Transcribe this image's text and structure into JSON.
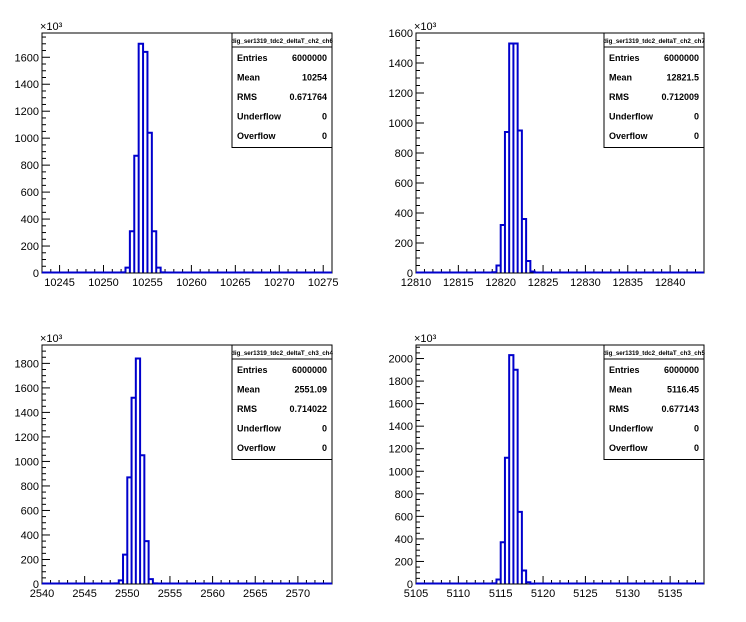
{
  "chart_data": [
    {
      "type": "bar",
      "title": "dig_ser1319_tdc2_deltaT_ch2_ch6",
      "exponent_label": "×10³",
      "xlim": [
        10243,
        10276
      ],
      "ylim": [
        0,
        1780
      ],
      "xticks": [
        10245,
        10250,
        10255,
        10260,
        10265,
        10270,
        10275
      ],
      "yticks": [
        0,
        200,
        400,
        600,
        800,
        1000,
        1200,
        1400,
        1600
      ],
      "bin_width": 0.5,
      "bins": [
        {
          "x": 10252.0,
          "y": 5
        },
        {
          "x": 10252.5,
          "y": 40
        },
        {
          "x": 10253.0,
          "y": 310
        },
        {
          "x": 10253.5,
          "y": 870
        },
        {
          "x": 10254.0,
          "y": 1700
        },
        {
          "x": 10254.5,
          "y": 1640
        },
        {
          "x": 10255.0,
          "y": 1040
        },
        {
          "x": 10255.5,
          "y": 310
        },
        {
          "x": 10256.0,
          "y": 40
        },
        {
          "x": 10256.5,
          "y": 5
        }
      ],
      "stats": [
        {
          "label": "Entries",
          "value": "6000000"
        },
        {
          "label": "Mean",
          "value": "10254"
        },
        {
          "label": "RMS",
          "value": "0.671764"
        },
        {
          "label": "Underflow",
          "value": "0"
        },
        {
          "label": "Overflow",
          "value": "0"
        }
      ]
    },
    {
      "type": "bar",
      "title": "dig_ser1319_tdc2_deltaT_ch2_ch7",
      "exponent_label": "×10³",
      "xlim": [
        12810,
        12844
      ],
      "ylim": [
        0,
        1600
      ],
      "xticks": [
        12810,
        12815,
        12820,
        12825,
        12830,
        12835,
        12840
      ],
      "yticks": [
        0,
        200,
        400,
        600,
        800,
        1000,
        1200,
        1400,
        1600
      ],
      "bin_width": 0.5,
      "bins": [
        {
          "x": 12819.0,
          "y": 5
        },
        {
          "x": 12819.5,
          "y": 50
        },
        {
          "x": 12820.0,
          "y": 320
        },
        {
          "x": 12820.5,
          "y": 940
        },
        {
          "x": 12821.0,
          "y": 1530
        },
        {
          "x": 12821.5,
          "y": 1530
        },
        {
          "x": 12822.0,
          "y": 950
        },
        {
          "x": 12822.5,
          "y": 360
        },
        {
          "x": 12823.0,
          "y": 80
        },
        {
          "x": 12823.5,
          "y": 10
        }
      ],
      "stats": [
        {
          "label": "Entries",
          "value": "6000000"
        },
        {
          "label": "Mean",
          "value": "12821.5"
        },
        {
          "label": "RMS",
          "value": "0.712009"
        },
        {
          "label": "Underflow",
          "value": "0"
        },
        {
          "label": "Overflow",
          "value": "0"
        }
      ]
    },
    {
      "type": "bar",
      "title": "dig_ser1319_tdc2_deltaT_ch3_ch4",
      "exponent_label": "×10³",
      "xlim": [
        2540,
        2574
      ],
      "ylim": [
        0,
        1950
      ],
      "xticks": [
        2540,
        2545,
        2550,
        2555,
        2560,
        2565,
        2570
      ],
      "yticks": [
        0,
        200,
        400,
        600,
        800,
        1000,
        1200,
        1400,
        1600,
        1800
      ],
      "bin_width": 0.5,
      "bins": [
        {
          "x": 2548.5,
          "y": 5
        },
        {
          "x": 2549.0,
          "y": 30
        },
        {
          "x": 2549.5,
          "y": 240
        },
        {
          "x": 2550.0,
          "y": 870
        },
        {
          "x": 2550.5,
          "y": 1520
        },
        {
          "x": 2551.0,
          "y": 1840
        },
        {
          "x": 2551.5,
          "y": 1050
        },
        {
          "x": 2552.0,
          "y": 350
        },
        {
          "x": 2552.5,
          "y": 40
        },
        {
          "x": 2553.0,
          "y": 5
        },
        {
          "x": 2555.5,
          "y": 4
        }
      ],
      "stats": [
        {
          "label": "Entries",
          "value": "6000000"
        },
        {
          "label": "Mean",
          "value": "2551.09"
        },
        {
          "label": "RMS",
          "value": "0.714022"
        },
        {
          "label": "Underflow",
          "value": "0"
        },
        {
          "label": "Overflow",
          "value": "0"
        }
      ]
    },
    {
      "type": "bar",
      "title": "dig_ser1319_tdc2_deltaT_ch3_ch5",
      "exponent_label": "×10³",
      "xlim": [
        5105,
        5139
      ],
      "ylim": [
        0,
        2120
      ],
      "xticks": [
        5105,
        5110,
        5115,
        5120,
        5125,
        5130,
        5135
      ],
      "yticks": [
        0,
        200,
        400,
        600,
        800,
        1000,
        1200,
        1400,
        1600,
        1800,
        2000
      ],
      "bin_width": 0.5,
      "bins": [
        {
          "x": 5114.0,
          "y": 5
        },
        {
          "x": 5114.5,
          "y": 40
        },
        {
          "x": 5115.0,
          "y": 370
        },
        {
          "x": 5115.5,
          "y": 1120
        },
        {
          "x": 5116.0,
          "y": 2030
        },
        {
          "x": 5116.5,
          "y": 1900
        },
        {
          "x": 5117.0,
          "y": 640
        },
        {
          "x": 5117.5,
          "y": 120
        },
        {
          "x": 5118.0,
          "y": 15
        },
        {
          "x": 5118.5,
          "y": 3
        }
      ],
      "stats": [
        {
          "label": "Entries",
          "value": "6000000"
        },
        {
          "label": "Mean",
          "value": "5116.45"
        },
        {
          "label": "RMS",
          "value": "0.677143"
        },
        {
          "label": "Underflow",
          "value": "0"
        },
        {
          "label": "Overflow",
          "value": "0"
        }
      ]
    }
  ]
}
